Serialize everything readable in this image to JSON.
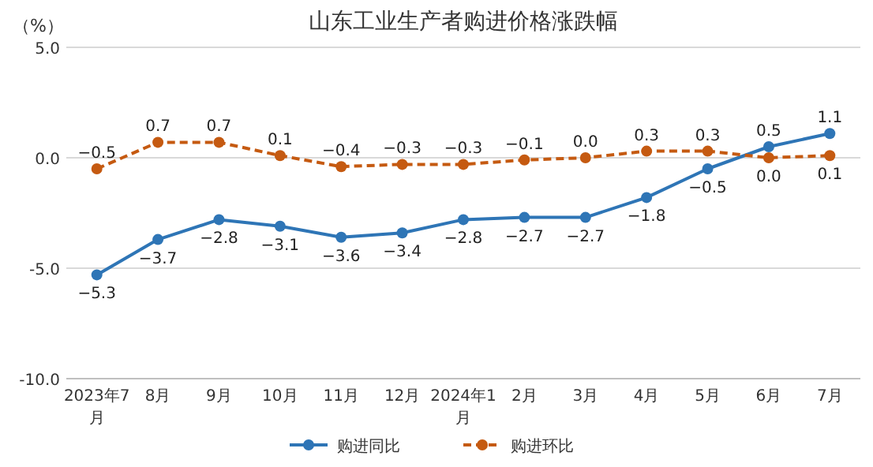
{
  "chart_data": {
    "type": "line",
    "title": "山东工业生产者购进价格涨跌幅",
    "ylabel": "（%）",
    "categories": [
      "2023年7月",
      "8月",
      "9月",
      "10月",
      "11月",
      "12月",
      "2024年1月",
      "2月",
      "3月",
      "4月",
      "5月",
      "6月",
      "7月"
    ],
    "series": [
      {
        "name": "购进同比",
        "color": "#2e75b6",
        "line_style": "solid",
        "values": [
          -5.3,
          -3.7,
          -2.8,
          -3.1,
          -3.6,
          -3.4,
          -2.8,
          -2.7,
          -2.7,
          -1.8,
          -0.5,
          0.5,
          1.1
        ],
        "value_labels": [
          "−5.3",
          "−3.7",
          "−2.8",
          "−3.1",
          "−3.6",
          "−3.4",
          "−2.8",
          "−2.7",
          "−2.7",
          "−1.8",
          "−0.5",
          "0.5",
          "1.1"
        ]
      },
      {
        "name": "购进环比",
        "color": "#c55a11",
        "line_style": "dashed",
        "values": [
          -0.5,
          0.7,
          0.7,
          0.1,
          -0.4,
          -0.3,
          -0.3,
          -0.1,
          0.0,
          0.3,
          0.3,
          0.0,
          0.1
        ],
        "value_labels": [
          "−0.5",
          "0.7",
          "0.7",
          "0.1",
          "−0.4",
          "−0.3",
          "−0.3",
          "−0.1",
          "0.0",
          "0.3",
          "0.3",
          "0.0",
          "0.1"
        ]
      }
    ],
    "ylim": [
      -10,
      5
    ],
    "yticks": [
      {
        "value": 5,
        "label": "5.0"
      },
      {
        "value": 0,
        "label": "0.0"
      },
      {
        "value": -5,
        "label": "-5.0"
      },
      {
        "value": -10,
        "label": "-10.0"
      }
    ],
    "grid": "y",
    "legend": "bottom",
    "marker": "circle"
  }
}
